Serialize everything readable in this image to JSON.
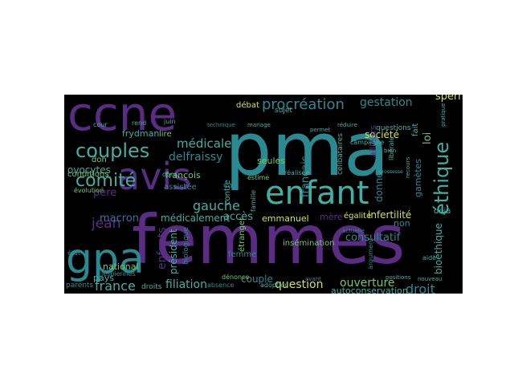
{
  "colors": {
    "background": "#000000",
    "purple": "#5b2c83",
    "teal": "#2a8a92",
    "cyan": "#3fb0a4",
    "green": "#6fc96a",
    "yellow": "#d4e24a",
    "blue": "#3f6fa2"
  },
  "words": [
    {
      "text": "pma",
      "color": "#2a8a92"
    },
    {
      "text": "femmes",
      "color": "#5b2c83"
    },
    {
      "text": "ccne",
      "color": "#5b2c83"
    },
    {
      "text": "enfant",
      "color": "#3fb0a4"
    },
    {
      "text": "avis",
      "color": "#5b2c83"
    },
    {
      "text": "gpa",
      "color": "#2a8a92"
    },
    {
      "text": "couples",
      "color": "#3fb0a4"
    },
    {
      "text": "comité",
      "color": "#3fb0a4"
    },
    {
      "text": "éthique",
      "color": "#3fb0a4"
    },
    {
      "text": "procréation",
      "color": "#2a8a92"
    },
    {
      "text": "gestation",
      "color": "#2a8a92"
    },
    {
      "text": "droit",
      "color": "#2a8a92"
    },
    {
      "text": "médicale",
      "color": "#3fb0a4"
    },
    {
      "text": "gauche",
      "color": "#3fb0a4"
    },
    {
      "text": "filiation",
      "color": "#3fb0a4"
    },
    {
      "text": "question",
      "color": "#d4e24a"
    },
    {
      "text": "ouverture",
      "color": "#6fc96a"
    },
    {
      "text": "france",
      "color": "#3fb0a4"
    },
    {
      "text": "père",
      "color": "#5b2c83"
    },
    {
      "text": "jean",
      "color": "#5b2c83"
    },
    {
      "text": "accès",
      "color": "#3fb0a4"
    },
    {
      "text": "médicalement",
      "color": "#3fb0a4"
    },
    {
      "text": "enfants",
      "color": "#5b2c83"
    },
    {
      "text": "loi",
      "color": "#6fc96a"
    },
    {
      "text": "société",
      "color": "#d4e24a"
    },
    {
      "text": "consultatif",
      "color": "#2a8a92"
    },
    {
      "text": "sperme",
      "color": "#d4e24a"
    },
    {
      "text": "delfraissy",
      "color": "#2a8a92"
    },
    {
      "text": "macron",
      "color": "#3f6fa2"
    },
    {
      "text": "ovocytes",
      "color": "#3fb0a4"
    },
    {
      "text": "bioéthique",
      "color": "#3fb0a4"
    },
    {
      "text": "couple",
      "color": "#2a8a92"
    },
    {
      "text": "infertilité",
      "color": "#d4e24a"
    },
    {
      "text": "emmanuel",
      "color": "#d4e24a"
    },
    {
      "text": "mère",
      "color": "#5b2c83"
    },
    {
      "text": "égalité",
      "color": "#d4e24a"
    },
    {
      "text": "non",
      "color": "#2a8a92"
    },
    {
      "text": "autoconservation",
      "color": "#3fb0a4"
    },
    {
      "text": "donneur",
      "color": "#2a8a92"
    },
    {
      "text": "débat",
      "color": "#d4e24a"
    },
    {
      "text": "français",
      "color": "#2a8a92"
    },
    {
      "text": "françois",
      "color": "#6fc96a"
    },
    {
      "text": "seules",
      "color": "#6fc96a"
    },
    {
      "text": "frydman",
      "color": "#3fb0a4"
    },
    {
      "text": "national",
      "color": "#6fc96a"
    },
    {
      "text": "pays",
      "color": "#3fb0a4"
    },
    {
      "text": "don",
      "color": "#6fc96a"
    },
    {
      "text": "conditions",
      "color": "#6fc96a"
    },
    {
      "text": "président",
      "color": "#3fb0a4"
    },
    {
      "text": "femme",
      "color": "#2a8a92"
    },
    {
      "text": "étranger",
      "color": "#6fc96a"
    },
    {
      "text": "insémination",
      "color": "#6fc96a"
    },
    {
      "text": "assistée",
      "color": "#2a8a92"
    },
    {
      "text": "cas",
      "color": "#2a8a92"
    },
    {
      "text": "contre",
      "color": "#3fb0a4"
    },
    {
      "text": "gamètes",
      "color": "#2a8a92"
    },
    {
      "text": "lire",
      "color": "#6fc96a"
    },
    {
      "text": "fait",
      "color": "#3fb0a4"
    },
    {
      "text": "ailleurs",
      "color": "#5b2c83"
    },
    {
      "text": "déjà",
      "color": "#3fb0a4"
    },
    {
      "text": "biologique",
      "color": "#2a8a92"
    },
    {
      "text": "lesbiennes",
      "color": "#2a8a92"
    },
    {
      "text": "parents",
      "color": "#2a8a92"
    },
    {
      "text": "droits",
      "color": "#3fb0a4"
    },
    {
      "text": "estime",
      "color": "#6fc96a"
    },
    {
      "text": "sujet",
      "color": "#3fb0a4"
    },
    {
      "text": "questions",
      "color": "#3fb0a4"
    },
    {
      "text": "campagne",
      "color": "#3fb0a4"
    },
    {
      "text": "célibataires",
      "color": "#3fb0a4"
    },
    {
      "text": "réalisée",
      "color": "#3fb0a4"
    },
    {
      "text": "dénonce",
      "color": "#6fc96a"
    },
    {
      "text": "adoption",
      "color": "#3fb0a4"
    },
    {
      "text": "absence",
      "color": "#2a8a92"
    },
    {
      "text": "argument",
      "color": "#2a8a92"
    },
    {
      "text": "aide",
      "color": "#3fb0a4"
    },
    {
      "text": "juin",
      "color": "#3fb0a4"
    },
    {
      "text": "rend",
      "color": "#3fb0a4"
    },
    {
      "text": "cour",
      "color": "#3fb0a4"
    },
    {
      "text": "évolution",
      "color": "#6fc96a"
    },
    {
      "text": "état",
      "color": "#2a8a92"
    },
    {
      "text": "dons",
      "color": "#3fb0a4"
    },
    {
      "text": "libérale",
      "color": "#3fb0a4"
    },
    {
      "text": "mariage",
      "color": "#3fb0a4"
    },
    {
      "text": "technique",
      "color": "#2a8a92"
    },
    {
      "text": "famille",
      "color": "#3fb0a4"
    },
    {
      "text": "recours",
      "color": "#3fb0a4"
    },
    {
      "text": "permet",
      "color": "#3fb0a4"
    },
    {
      "text": "réduire",
      "color": "#3fb0a4"
    },
    {
      "text": "bien",
      "color": "#3fb0a4"
    },
    {
      "text": "pratique",
      "color": "#3fb0a4"
    },
    {
      "text": "actuelle",
      "color": "#2a8a92"
    },
    {
      "text": "grossesse",
      "color": "#3fb0a4"
    },
    {
      "text": "avant",
      "color": "#2a8a92"
    },
    {
      "text": "nouveau",
      "color": "#3fb0a4"
    },
    {
      "text": "positions",
      "color": "#3fb0a4"
    }
  ]
}
